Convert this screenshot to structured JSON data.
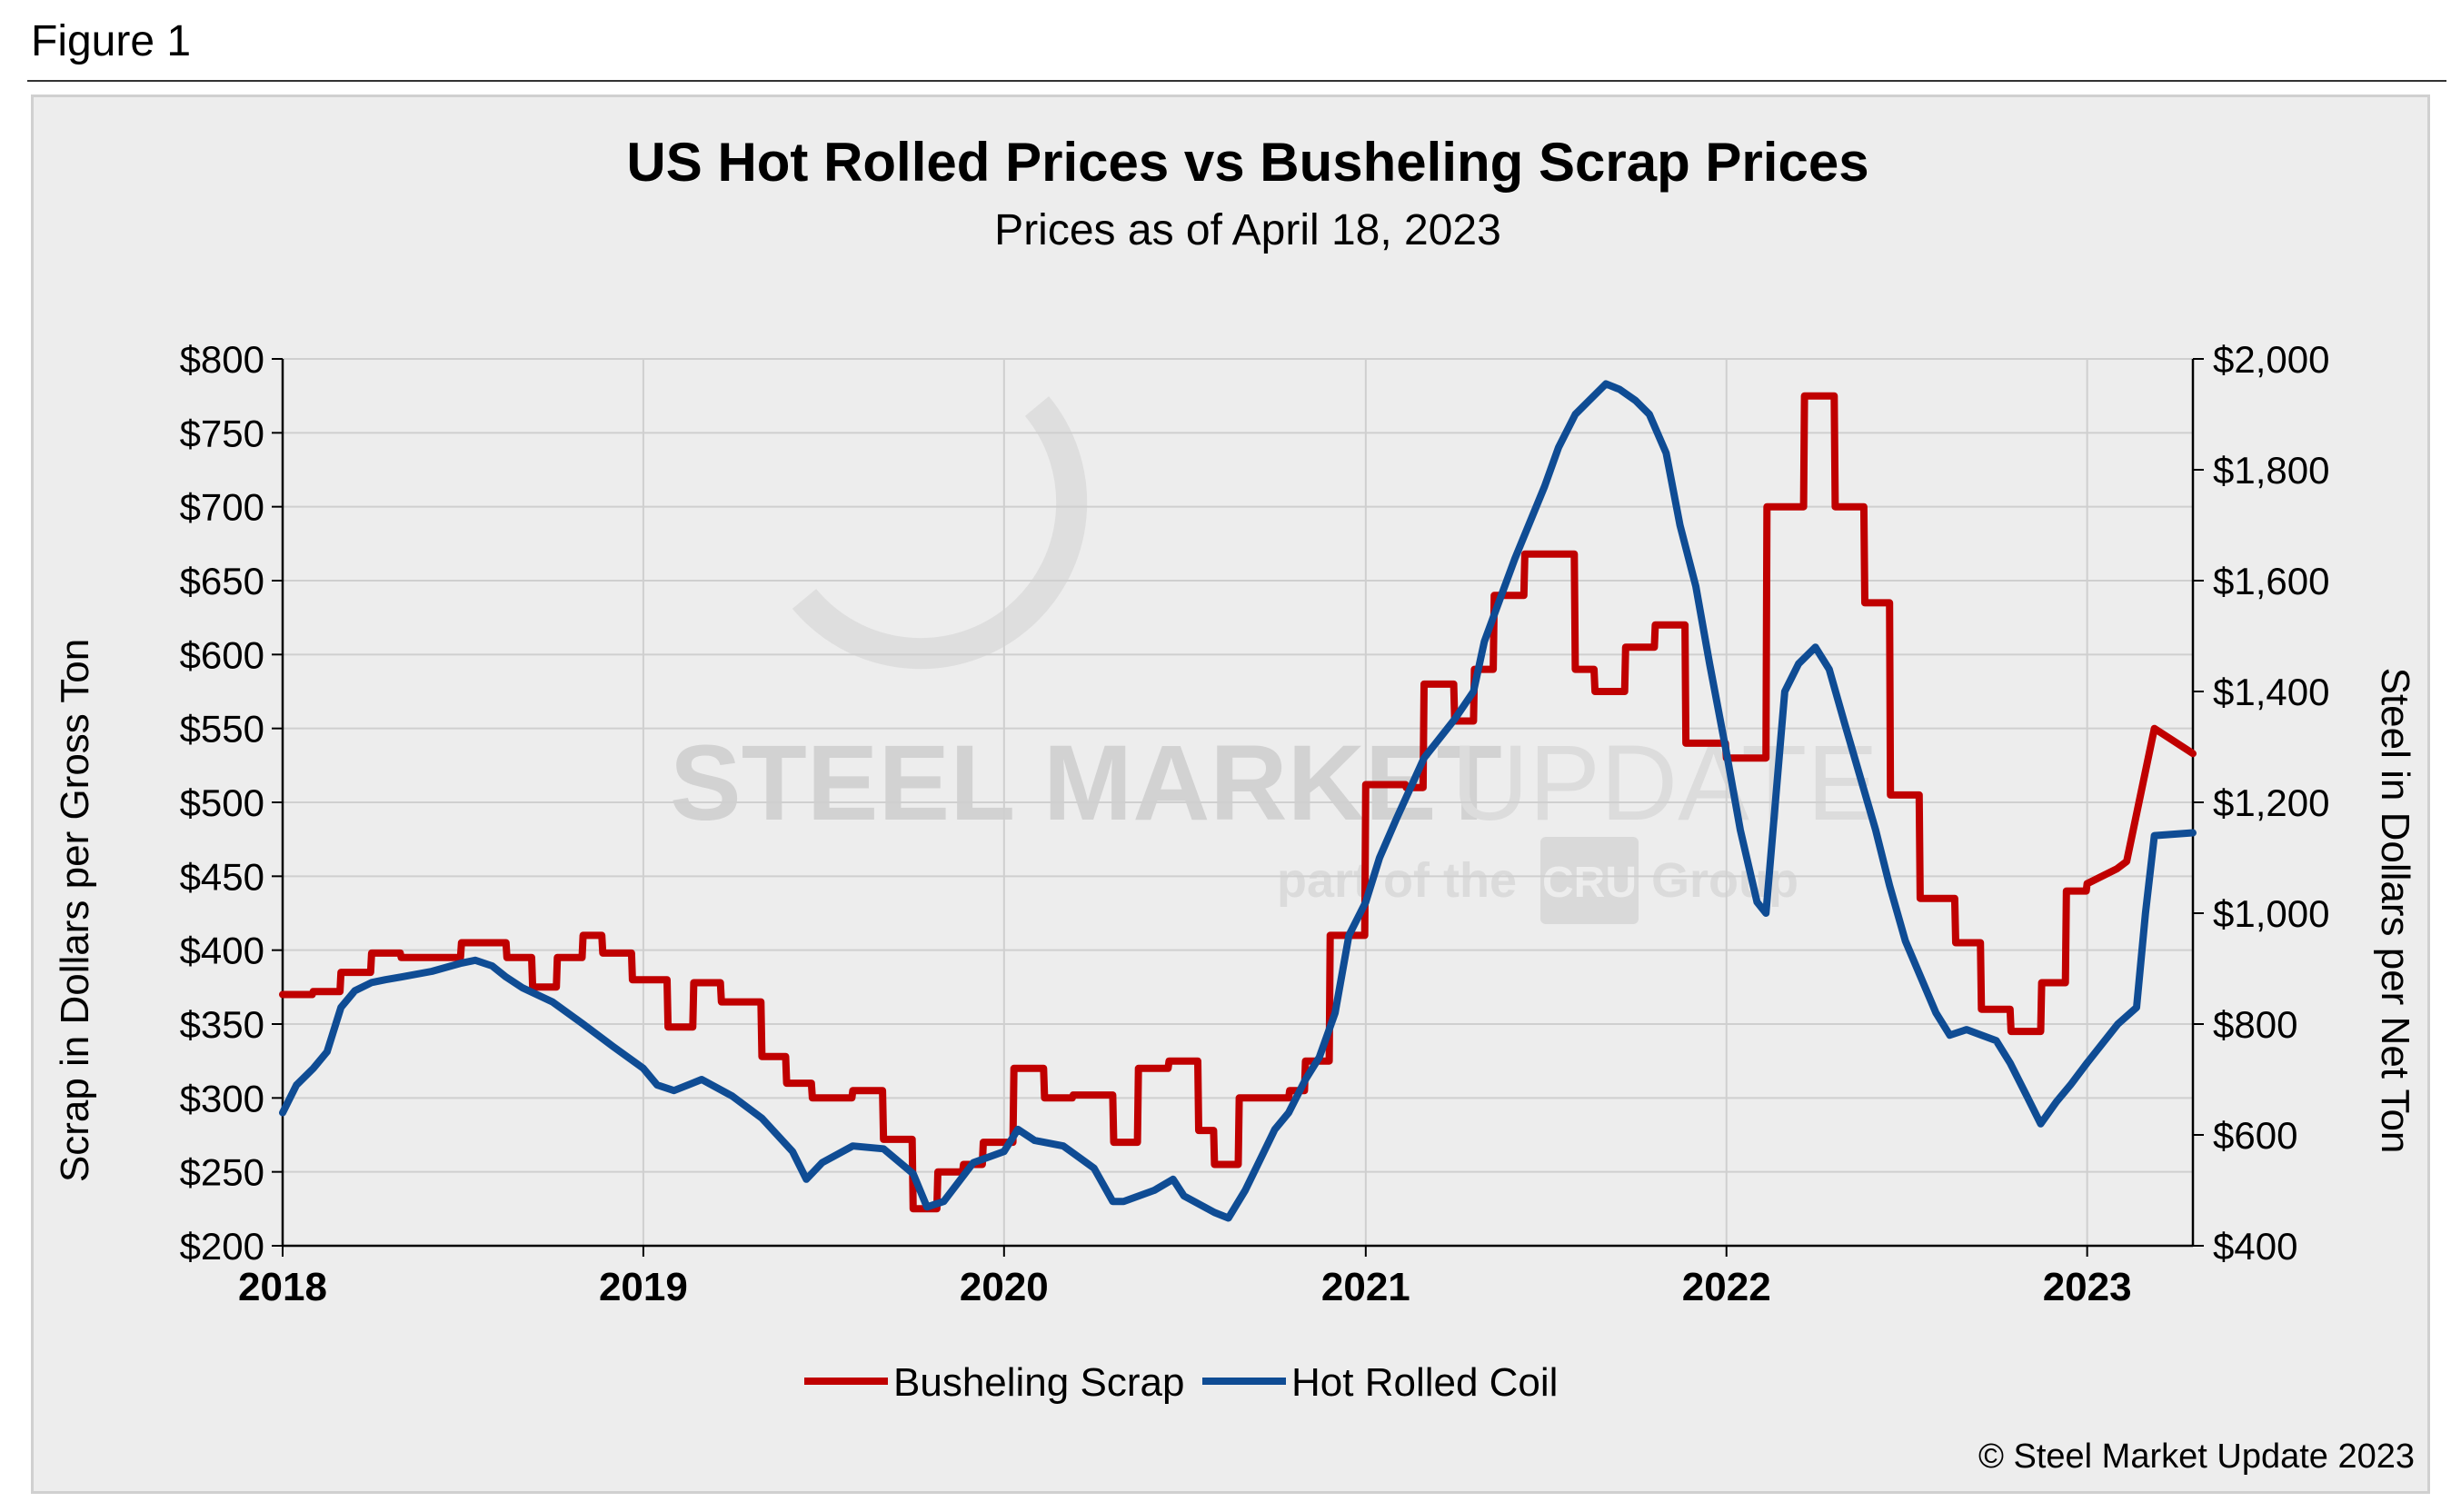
{
  "figure_label": "Figure 1",
  "colors": {
    "busheling": "#c00000",
    "hot_rolled": "#0f4c94",
    "grid": "#cfcfcf"
  },
  "watermark": {
    "brand_main": "STEEL MARKET",
    "brand_light": "UPDATE",
    "tag_pre": "part of the",
    "tag_logo": "CRU",
    "tag_post": "Group"
  },
  "copyright": "© Steel Market Update 2023",
  "chart_data": {
    "type": "line",
    "title": "US Hot Rolled Prices vs Busheling Scrap Prices",
    "subtitle": "Prices as of April 18, 2023",
    "ylabel_left": "Scrap in Dollars per Gross Ton",
    "ylabel_right": "Steel in Dollars per Net Ton",
    "ylim_left": [
      200,
      800
    ],
    "ylim_right": [
      400,
      2000
    ],
    "xlim": [
      "2018-01-01",
      "2023-04-18"
    ],
    "x_ticks": [
      "2018",
      "2019",
      "2020",
      "2021",
      "2022",
      "2023"
    ],
    "y_ticks_left": [
      "$200",
      "$250",
      "$300",
      "$350",
      "$400",
      "$450",
      "$500",
      "$550",
      "$600",
      "$650",
      "$700",
      "$750",
      "$800"
    ],
    "y_ticks_right": [
      "$400",
      "$600",
      "$800",
      "$1,000",
      "$1,200",
      "$1,400",
      "$1,600",
      "$1,800",
      "$2,000"
    ],
    "grid": true,
    "legend_position": "bottom",
    "series": [
      {
        "name": "Busheling Scrap",
        "axis": "left",
        "points": [
          [
            "2018-01-01",
            370
          ],
          [
            "2018-01-31",
            370
          ],
          [
            "2018-02-01",
            372
          ],
          [
            "2018-02-28",
            372
          ],
          [
            "2018-03-01",
            385
          ],
          [
            "2018-03-31",
            385
          ],
          [
            "2018-04-01",
            398
          ],
          [
            "2018-04-30",
            398
          ],
          [
            "2018-05-01",
            395
          ],
          [
            "2018-05-31",
            395
          ],
          [
            "2018-06-01",
            395
          ],
          [
            "2018-06-30",
            395
          ],
          [
            "2018-07-01",
            405
          ],
          [
            "2018-08-15",
            405
          ],
          [
            "2018-08-16",
            395
          ],
          [
            "2018-09-10",
            395
          ],
          [
            "2018-09-11",
            375
          ],
          [
            "2018-10-05",
            375
          ],
          [
            "2018-10-06",
            395
          ],
          [
            "2018-10-31",
            395
          ],
          [
            "2018-11-01",
            410
          ],
          [
            "2018-11-20",
            410
          ],
          [
            "2018-11-21",
            398
          ],
          [
            "2018-12-20",
            398
          ],
          [
            "2018-12-21",
            380
          ],
          [
            "2019-01-25",
            380
          ],
          [
            "2019-01-26",
            348
          ],
          [
            "2019-02-20",
            348
          ],
          [
            "2019-02-21",
            378
          ],
          [
            "2019-03-20",
            378
          ],
          [
            "2019-03-21",
            365
          ],
          [
            "2019-04-30",
            365
          ],
          [
            "2019-05-01",
            328
          ],
          [
            "2019-05-25",
            328
          ],
          [
            "2019-05-26",
            310
          ],
          [
            "2019-06-20",
            310
          ],
          [
            "2019-06-21",
            300
          ],
          [
            "2019-07-31",
            300
          ],
          [
            "2019-08-01",
            305
          ],
          [
            "2019-08-31",
            305
          ],
          [
            "2019-09-01",
            272
          ],
          [
            "2019-09-30",
            272
          ],
          [
            "2019-10-01",
            225
          ],
          [
            "2019-10-25",
            225
          ],
          [
            "2019-10-26",
            250
          ],
          [
            "2019-11-20",
            250
          ],
          [
            "2019-11-21",
            255
          ],
          [
            "2019-12-10",
            255
          ],
          [
            "2019-12-11",
            270
          ],
          [
            "2020-01-10",
            270
          ],
          [
            "2020-01-11",
            320
          ],
          [
            "2020-02-10",
            320
          ],
          [
            "2020-02-11",
            300
          ],
          [
            "2020-03-10",
            300
          ],
          [
            "2020-03-11",
            302
          ],
          [
            "2020-04-20",
            302
          ],
          [
            "2020-04-21",
            270
          ],
          [
            "2020-05-15",
            270
          ],
          [
            "2020-05-16",
            320
          ],
          [
            "2020-06-15",
            320
          ],
          [
            "2020-06-16",
            325
          ],
          [
            "2020-07-15",
            325
          ],
          [
            "2020-07-16",
            278
          ],
          [
            "2020-07-31",
            278
          ],
          [
            "2020-08-01",
            255
          ],
          [
            "2020-08-25",
            255
          ],
          [
            "2020-08-26",
            300
          ],
          [
            "2020-10-15",
            300
          ],
          [
            "2020-10-16",
            305
          ],
          [
            "2020-10-31",
            305
          ],
          [
            "2020-11-01",
            325
          ],
          [
            "2020-11-25",
            325
          ],
          [
            "2020-11-26",
            410
          ],
          [
            "2020-12-31",
            410
          ],
          [
            "2021-01-01",
            512
          ],
          [
            "2021-02-10",
            512
          ],
          [
            "2021-02-11",
            510
          ],
          [
            "2021-02-28",
            510
          ],
          [
            "2021-03-01",
            580
          ],
          [
            "2021-03-31",
            580
          ],
          [
            "2021-04-01",
            555
          ],
          [
            "2021-04-20",
            555
          ],
          [
            "2021-04-21",
            590
          ],
          [
            "2021-05-10",
            590
          ],
          [
            "2021-05-11",
            640
          ],
          [
            "2021-06-10",
            640
          ],
          [
            "2021-06-11",
            668
          ],
          [
            "2021-07-31",
            668
          ],
          [
            "2021-08-01",
            590
          ],
          [
            "2021-08-20",
            590
          ],
          [
            "2021-08-21",
            575
          ],
          [
            "2021-09-20",
            575
          ],
          [
            "2021-09-21",
            605
          ],
          [
            "2021-10-20",
            605
          ],
          [
            "2021-10-21",
            620
          ],
          [
            "2021-11-20",
            620
          ],
          [
            "2021-11-21",
            540
          ],
          [
            "2021-12-31",
            540
          ],
          [
            "2022-01-01",
            530
          ],
          [
            "2022-02-10",
            530
          ],
          [
            "2022-02-11",
            700
          ],
          [
            "2022-03-20",
            700
          ],
          [
            "2022-03-21",
            775
          ],
          [
            "2022-04-20",
            775
          ],
          [
            "2022-04-21",
            700
          ],
          [
            "2022-05-20",
            700
          ],
          [
            "2022-05-21",
            635
          ],
          [
            "2022-06-15",
            635
          ],
          [
            "2022-06-16",
            505
          ],
          [
            "2022-07-15",
            505
          ],
          [
            "2022-07-16",
            435
          ],
          [
            "2022-08-20",
            435
          ],
          [
            "2022-08-21",
            405
          ],
          [
            "2022-09-15",
            405
          ],
          [
            "2022-09-16",
            360
          ],
          [
            "2022-10-15",
            360
          ],
          [
            "2022-10-16",
            345
          ],
          [
            "2022-11-15",
            345
          ],
          [
            "2022-11-16",
            378
          ],
          [
            "2022-12-10",
            378
          ],
          [
            "2022-12-11",
            440
          ],
          [
            "2022-12-31",
            440
          ],
          [
            "2023-01-01",
            445
          ],
          [
            "2023-01-31",
            455
          ],
          [
            "2023-02-10",
            460
          ],
          [
            "2023-03-10",
            550
          ],
          [
            "2023-04-18",
            533
          ]
        ]
      },
      {
        "name": "Hot Rolled Coil",
        "axis": "right",
        "points": [
          [
            "2018-01-01",
            640
          ],
          [
            "2018-01-15",
            690
          ],
          [
            "2018-02-01",
            720
          ],
          [
            "2018-02-15",
            750
          ],
          [
            "2018-03-01",
            830
          ],
          [
            "2018-03-15",
            860
          ],
          [
            "2018-04-01",
            875
          ],
          [
            "2018-04-15",
            880
          ],
          [
            "2018-05-01",
            885
          ],
          [
            "2018-06-01",
            895
          ],
          [
            "2018-07-01",
            910
          ],
          [
            "2018-07-15",
            915
          ],
          [
            "2018-08-01",
            905
          ],
          [
            "2018-08-15",
            885
          ],
          [
            "2018-09-01",
            865
          ],
          [
            "2018-10-01",
            840
          ],
          [
            "2018-11-01",
            800
          ],
          [
            "2018-12-01",
            760
          ],
          [
            "2019-01-01",
            720
          ],
          [
            "2019-01-15",
            690
          ],
          [
            "2019-02-01",
            680
          ],
          [
            "2019-03-01",
            700
          ],
          [
            "2019-04-01",
            670
          ],
          [
            "2019-05-01",
            630
          ],
          [
            "2019-06-01",
            570
          ],
          [
            "2019-06-15",
            520
          ],
          [
            "2019-07-01",
            550
          ],
          [
            "2019-08-01",
            580
          ],
          [
            "2019-09-01",
            575
          ],
          [
            "2019-10-01",
            530
          ],
          [
            "2019-10-15",
            470
          ],
          [
            "2019-11-01",
            480
          ],
          [
            "2019-12-01",
            550
          ],
          [
            "2020-01-01",
            570
          ],
          [
            "2020-01-15",
            610
          ],
          [
            "2020-02-01",
            590
          ],
          [
            "2020-03-01",
            580
          ],
          [
            "2020-04-01",
            540
          ],
          [
            "2020-04-20",
            480
          ],
          [
            "2020-05-01",
            480
          ],
          [
            "2020-06-01",
            500
          ],
          [
            "2020-06-20",
            520
          ],
          [
            "2020-07-01",
            490
          ],
          [
            "2020-08-01",
            460
          ],
          [
            "2020-08-15",
            450
          ],
          [
            "2020-09-01",
            500
          ],
          [
            "2020-10-01",
            610
          ],
          [
            "2020-10-15",
            640
          ],
          [
            "2020-11-01",
            700
          ],
          [
            "2020-11-15",
            740
          ],
          [
            "2020-12-01",
            820
          ],
          [
            "2020-12-15",
            960
          ],
          [
            "2021-01-01",
            1020
          ],
          [
            "2021-01-15",
            1100
          ],
          [
            "2021-02-01",
            1170
          ],
          [
            "2021-03-01",
            1280
          ],
          [
            "2021-04-01",
            1350
          ],
          [
            "2021-04-20",
            1400
          ],
          [
            "2021-05-01",
            1490
          ],
          [
            "2021-06-01",
            1640
          ],
          [
            "2021-07-01",
            1770
          ],
          [
            "2021-07-15",
            1840
          ],
          [
            "2021-08-01",
            1900
          ],
          [
            "2021-08-15",
            1925
          ],
          [
            "2021-09-01",
            1955
          ],
          [
            "2021-09-15",
            1945
          ],
          [
            "2021-10-01",
            1925
          ],
          [
            "2021-10-15",
            1900
          ],
          [
            "2021-11-01",
            1830
          ],
          [
            "2021-11-15",
            1700
          ],
          [
            "2021-12-01",
            1590
          ],
          [
            "2021-12-15",
            1450
          ],
          [
            "2022-01-01",
            1290
          ],
          [
            "2022-01-15",
            1150
          ],
          [
            "2022-02-01",
            1020
          ],
          [
            "2022-02-10",
            1000
          ],
          [
            "2022-03-01",
            1400
          ],
          [
            "2022-03-15",
            1450
          ],
          [
            "2022-04-01",
            1480
          ],
          [
            "2022-04-15",
            1440
          ],
          [
            "2022-05-01",
            1340
          ],
          [
            "2022-06-01",
            1150
          ],
          [
            "2022-06-15",
            1050
          ],
          [
            "2022-07-01",
            950
          ],
          [
            "2022-08-01",
            820
          ],
          [
            "2022-08-15",
            780
          ],
          [
            "2022-09-01",
            790
          ],
          [
            "2022-10-01",
            770
          ],
          [
            "2022-10-15",
            730
          ],
          [
            "2022-11-01",
            670
          ],
          [
            "2022-11-15",
            620
          ],
          [
            "2022-12-01",
            660
          ],
          [
            "2022-12-15",
            690
          ],
          [
            "2023-01-01",
            730
          ],
          [
            "2023-02-01",
            800
          ],
          [
            "2023-02-20",
            830
          ],
          [
            "2023-03-01",
            1000
          ],
          [
            "2023-03-10",
            1140
          ],
          [
            "2023-04-18",
            1145
          ]
        ]
      }
    ]
  }
}
